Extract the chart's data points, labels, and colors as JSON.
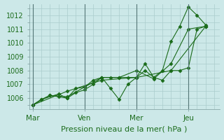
{
  "background_color": "#cce8e8",
  "grid_color": "#aacccc",
  "line_color": "#1a6b1a",
  "xlabel": "Pression niveau de la mer( hPa )",
  "ylim": [
    1005.2,
    1012.8
  ],
  "yticks": [
    1006,
    1007,
    1008,
    1009,
    1010,
    1011,
    1012
  ],
  "xtick_labels": [
    "Mar",
    "Ven",
    "Mer",
    "Jeu"
  ],
  "xtick_positions": [
    0,
    3,
    6,
    9
  ],
  "lines": [
    {
      "x": [
        0,
        0.5,
        1.5,
        2,
        2.5,
        3,
        3.5,
        4,
        4.5,
        5,
        5.5,
        6,
        6.5,
        7,
        7.5,
        8,
        8.5,
        9,
        9.5,
        10
      ],
      "y": [
        1005.5,
        1005.9,
        1006.3,
        1006.0,
        1006.7,
        1006.8,
        1007.3,
        1007.5,
        1006.7,
        1005.9,
        1007.0,
        1007.5,
        1008.5,
        1007.5,
        1008.0,
        1010.1,
        1011.2,
        1012.6,
        1012.0,
        1011.3
      ]
    },
    {
      "x": [
        0,
        0.5,
        1,
        1.5,
        2,
        2.5,
        3,
        3.5,
        4,
        4.5,
        5,
        5.5,
        6,
        6.5,
        7,
        7.5,
        8,
        8.5,
        9,
        9.5,
        10
      ],
      "y": [
        1005.5,
        1005.9,
        1006.2,
        1006.1,
        1006.0,
        1006.4,
        1006.6,
        1007.0,
        1007.5,
        1007.5,
        1007.5,
        1007.5,
        1007.5,
        1008.0,
        1007.5,
        1007.3,
        1008.0,
        1008.0,
        1008.2,
        1011.0,
        1011.2
      ]
    },
    {
      "x": [
        0,
        1,
        2,
        3,
        4,
        5,
        6,
        7,
        8,
        9,
        10
      ],
      "y": [
        1005.5,
        1006.2,
        1006.1,
        1006.8,
        1007.5,
        1007.5,
        1008.0,
        1007.4,
        1008.5,
        1011.0,
        1011.2
      ]
    },
    {
      "x": [
        0,
        2,
        4,
        6,
        8,
        10
      ],
      "y": [
        1005.5,
        1006.5,
        1007.3,
        1007.5,
        1008.0,
        1011.2
      ]
    }
  ],
  "vlines_x": [
    0,
    3,
    6,
    9
  ],
  "marker": "D",
  "markersize": 2.5
}
